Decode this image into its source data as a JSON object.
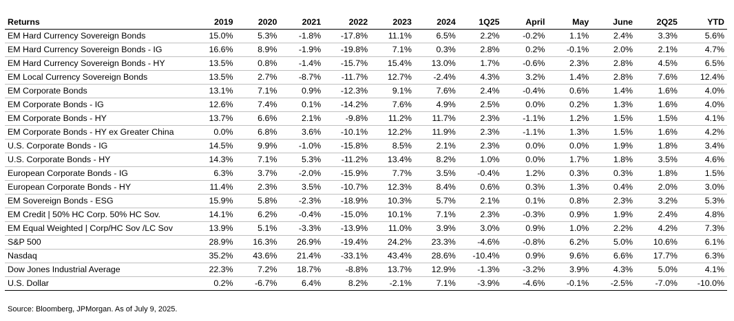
{
  "table": {
    "headers": [
      "Returns",
      "2019",
      "2020",
      "2021",
      "2022",
      "2023",
      "2024",
      "1Q25",
      "April",
      "May",
      "June",
      "2Q25",
      "YTD"
    ],
    "rows": [
      [
        "EM Hard Currency Sovereign Bonds",
        "15.0%",
        "5.3%",
        "-1.8%",
        "-17.8%",
        "11.1%",
        "6.5%",
        "2.2%",
        "-0.2%",
        "1.1%",
        "2.4%",
        "3.3%",
        "5.6%"
      ],
      [
        "EM Hard Currency Sovereign Bonds - IG",
        "16.6%",
        "8.9%",
        "-1.9%",
        "-19.8%",
        "7.1%",
        "0.3%",
        "2.8%",
        "0.2%",
        "-0.1%",
        "2.0%",
        "2.1%",
        "4.7%"
      ],
      [
        "EM Hard Currency Sovereign Bonds - HY",
        "13.5%",
        "0.8%",
        "-1.4%",
        "-15.7%",
        "15.4%",
        "13.0%",
        "1.7%",
        "-0.6%",
        "2.3%",
        "2.8%",
        "4.5%",
        "6.5%"
      ],
      [
        "EM Local Currency Sovereign Bonds",
        "13.5%",
        "2.7%",
        "-8.7%",
        "-11.7%",
        "12.7%",
        "-2.4%",
        "4.3%",
        "3.2%",
        "1.4%",
        "2.8%",
        "7.6%",
        "12.4%"
      ],
      [
        "EM Corporate Bonds",
        "13.1%",
        "7.1%",
        "0.9%",
        "-12.3%",
        "9.1%",
        "7.6%",
        "2.4%",
        "-0.4%",
        "0.6%",
        "1.4%",
        "1.6%",
        "4.0%"
      ],
      [
        "EM Corporate Bonds - IG",
        "12.6%",
        "7.4%",
        "0.1%",
        "-14.2%",
        "7.6%",
        "4.9%",
        "2.5%",
        "0.0%",
        "0.2%",
        "1.3%",
        "1.6%",
        "4.0%"
      ],
      [
        "EM Corporate Bonds - HY",
        "13.7%",
        "6.6%",
        "2.1%",
        "-9.8%",
        "11.2%",
        "11.7%",
        "2.3%",
        "-1.1%",
        "1.2%",
        "1.5%",
        "1.5%",
        "4.1%"
      ],
      [
        "EM Corporate Bonds - HY ex Greater China",
        "0.0%",
        "6.8%",
        "3.6%",
        "-10.1%",
        "12.2%",
        "11.9%",
        "2.3%",
        "-1.1%",
        "1.3%",
        "1.5%",
        "1.6%",
        "4.2%"
      ],
      [
        "U.S. Corporate Bonds - IG",
        "14.5%",
        "9.9%",
        "-1.0%",
        "-15.8%",
        "8.5%",
        "2.1%",
        "2.3%",
        "0.0%",
        "0.0%",
        "1.9%",
        "1.8%",
        "3.4%"
      ],
      [
        "U.S. Corporate Bonds - HY",
        "14.3%",
        "7.1%",
        "5.3%",
        "-11.2%",
        "13.4%",
        "8.2%",
        "1.0%",
        "0.0%",
        "1.7%",
        "1.8%",
        "3.5%",
        "4.6%"
      ],
      [
        "European Corporate Bonds - IG",
        "6.3%",
        "3.7%",
        "-2.0%",
        "-15.9%",
        "7.7%",
        "3.5%",
        "-0.4%",
        "1.2%",
        "0.3%",
        "0.3%",
        "1.8%",
        "1.5%"
      ],
      [
        "European Corporate Bonds - HY",
        "11.4%",
        "2.3%",
        "3.5%",
        "-10.7%",
        "12.3%",
        "8.4%",
        "0.6%",
        "0.3%",
        "1.3%",
        "0.4%",
        "2.0%",
        "3.0%"
      ],
      [
        "EM Sovereign Bonds - ESG",
        "15.9%",
        "5.8%",
        "-2.3%",
        "-18.9%",
        "10.3%",
        "5.7%",
        "2.1%",
        "0.1%",
        "0.8%",
        "2.3%",
        "3.2%",
        "5.3%"
      ],
      [
        "EM Credit | 50% HC Corp. 50% HC Sov.",
        "14.1%",
        "6.2%",
        "-0.4%",
        "-15.0%",
        "10.1%",
        "7.1%",
        "2.3%",
        "-0.3%",
        "0.9%",
        "1.9%",
        "2.4%",
        "4.8%"
      ],
      [
        "EM Equal Weighted | Corp/HC Sov /LC Sov",
        "13.9%",
        "5.1%",
        "-3.3%",
        "-13.9%",
        "11.0%",
        "3.9%",
        "3.0%",
        "0.9%",
        "1.0%",
        "2.2%",
        "4.2%",
        "7.3%"
      ],
      [
        "S&P 500",
        "28.9%",
        "16.3%",
        "26.9%",
        "-19.4%",
        "24.2%",
        "23.3%",
        "-4.6%",
        "-0.8%",
        "6.2%",
        "5.0%",
        "10.6%",
        "6.1%"
      ],
      [
        "Nasdaq",
        "35.2%",
        "43.6%",
        "21.4%",
        "-33.1%",
        "43.4%",
        "28.6%",
        "-10.4%",
        "0.9%",
        "9.6%",
        "6.6%",
        "17.7%",
        "6.3%"
      ],
      [
        "Dow Jones Industrial Average",
        "22.3%",
        "7.2%",
        "18.7%",
        "-8.8%",
        "13.7%",
        "12.9%",
        "-1.3%",
        "-3.2%",
        "3.9%",
        "4.3%",
        "5.0%",
        "4.1%"
      ],
      [
        "U.S. Dollar",
        "0.2%",
        "-6.7%",
        "6.4%",
        "8.2%",
        "-2.1%",
        "7.1%",
        "-3.9%",
        "-4.6%",
        "-0.1%",
        "-2.5%",
        "-7.0%",
        "-10.0%"
      ]
    ]
  },
  "source": "Source: Bloomberg, JPMorgan. As of July 9, 2025."
}
